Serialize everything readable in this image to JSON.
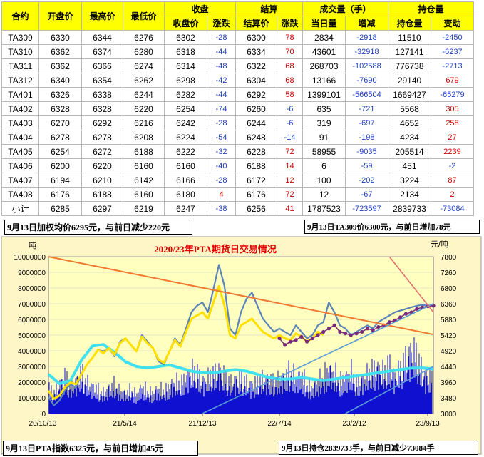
{
  "table": {
    "group_headers": [
      "收盘",
      "结算",
      "成交量（手）",
      "持仓量"
    ],
    "columns": [
      "合约",
      "开盘价",
      "最高价",
      "最低价",
      "收盘价",
      "涨跌",
      "结算价",
      "涨跌",
      "当日量",
      "增减",
      "持仓量",
      "变动"
    ],
    "rows": [
      [
        "TA309",
        "6330",
        "6344",
        "6276",
        "6302",
        "-28",
        "6300",
        "78",
        "2834",
        "-2918",
        "11510",
        "-2450"
      ],
      [
        "TA310",
        "6362",
        "6374",
        "6280",
        "6318",
        "-44",
        "6334",
        "70",
        "43601",
        "-32918",
        "127141",
        "-6237"
      ],
      [
        "TA311",
        "6362",
        "6366",
        "6274",
        "6314",
        "-48",
        "6322",
        "68",
        "268703",
        "-102588",
        "776738",
        "-2713"
      ],
      [
        "TA312",
        "6340",
        "6354",
        "6262",
        "6298",
        "-42",
        "6304",
        "68",
        "13166",
        "-7690",
        "29140",
        "679"
      ],
      [
        "TA401",
        "6326",
        "6338",
        "6244",
        "6282",
        "-44",
        "6292",
        "58",
        "1399101",
        "-566504",
        "1669427",
        "-65279"
      ],
      [
        "TA402",
        "6328",
        "6328",
        "6220",
        "6254",
        "-74",
        "6260",
        "-6",
        "635",
        "-721",
        "5568",
        "305"
      ],
      [
        "TA403",
        "6270",
        "6292",
        "6216",
        "6242",
        "-28",
        "6244",
        "-6",
        "319",
        "-697",
        "4652",
        "258"
      ],
      [
        "TA404",
        "6278",
        "6278",
        "6208",
        "6224",
        "-54",
        "6248",
        "-14",
        "91",
        "-198",
        "4234",
        "27"
      ],
      [
        "TA405",
        "6254",
        "6272",
        "6188",
        "6222",
        "-32",
        "6228",
        "72",
        "58955",
        "-9035",
        "205514",
        "2239"
      ],
      [
        "TA406",
        "6200",
        "6220",
        "6160",
        "6160",
        "-40",
        "6188",
        "14",
        "6",
        "-59",
        "451",
        "-2"
      ],
      [
        "TA407",
        "6194",
        "6210",
        "6142",
        "6166",
        "-28",
        "6172",
        "12",
        "100",
        "-202",
        "3224",
        "87"
      ],
      [
        "TA408",
        "6176",
        "6188",
        "6160",
        "6180",
        "4",
        "6176",
        "72",
        "12",
        "-67",
        "2134",
        "2"
      ],
      [
        "小计",
        "6285",
        "6297",
        "6219",
        "6247",
        "-38",
        "6256",
        "41",
        "1787523",
        "-723597",
        "2839733",
        "-73084"
      ]
    ]
  },
  "notes": {
    "top_left": "9月13日加权均价6295元，与前日减少220元",
    "top_right": "9月13日TA309价6300元，与前日增加78元",
    "bottom_left": "9月13日PTA指数6325元，与前日增加45元",
    "bottom_right": "9月13日持仓2839733手，与前日减少73084手"
  },
  "chart_data": {
    "type": "line",
    "title": "2020/23年PTA期货日交易情况",
    "ylabel_left": "吨",
    "ylabel_right": "元/吨",
    "y_left_ticks": [
      "10000000",
      "9000000",
      "8000000",
      "7000000",
      "6000000",
      "5000000",
      "4000000",
      "3000000",
      "2000000",
      "1000000",
      "0"
    ],
    "y_right_ticks": [
      "7800",
      "7260",
      "6800",
      "6360",
      "5880",
      "5420",
      "4920",
      "4440",
      "3960",
      "3480",
      "3000"
    ],
    "x_ticks": [
      "20/10/13",
      "21/5/14",
      "21/12/13",
      "22/7/14",
      "23/2/12",
      "23/9/13"
    ],
    "y_left_range": [
      0,
      10000000
    ],
    "y_right_range": [
      3000,
      7800
    ],
    "x_range_months": [
      0,
      35
    ],
    "grid": true,
    "colors": {
      "plot_bg": "#ffffc0",
      "frame_bg": "#fff6c8",
      "volume": "#1010d0",
      "open_interest": "#40e0f0",
      "price_steel": "#5b84b8",
      "price_yellow": "#ffe000",
      "price_purple": "#7a2a7a",
      "trend_orange": "#f07830",
      "trend_blue": "#5b9bd5",
      "title": "#e00000"
    },
    "series": [
      {
        "name": "",
        "axis": "right",
        "x": [
          0,
          0.5,
          1,
          1.5,
          2,
          2.5,
          3,
          3.5,
          4,
          4.5,
          5,
          5.5,
          6,
          6.5,
          7,
          7.5,
          8,
          8.5,
          9,
          9.5,
          10,
          10.5,
          11,
          11.5,
          12,
          12.5,
          13,
          13.5,
          14,
          14.5,
          15,
          15.5,
          16,
          16.5,
          17,
          17.5,
          18,
          18.5,
          19,
          19.5,
          20,
          20.5,
          21,
          21.5,
          22,
          22.5,
          23,
          23.5,
          24,
          24.5,
          25,
          25.5,
          26,
          26.5,
          27,
          27.5,
          28,
          28.5,
          29,
          29.5,
          30,
          30.5,
          31,
          31.5,
          32,
          32.5,
          33,
          33.5,
          34,
          34.5,
          35
        ],
        "values": [
          3500,
          3250,
          3400,
          3700,
          3900,
          3800,
          4200,
          4500,
          4700,
          4950,
          4900,
          5000,
          4750,
          5200,
          5300,
          5100,
          4900,
          5400,
          5200,
          5000,
          4600,
          4500,
          4900,
          5300,
          5100,
          5600,
          6100,
          6300,
          6400,
          6100,
          6800,
          7550,
          6900,
          5600,
          5400,
          6100,
          6500,
          6700,
          6300,
          5900,
          5700,
          5500,
          5600,
          5500,
          5400,
          5700,
          5500,
          5300,
          5400,
          5700,
          5800,
          6400,
          6100,
          5700,
          5600,
          5400,
          5500,
          5600,
          5700,
          5600,
          5800,
          5900,
          6000,
          6100,
          6150,
          6200,
          6250,
          6300,
          6325,
          6300,
          6325
        ]
      },
      {
        "name": "",
        "axis": "right",
        "x": [
          0,
          0.5,
          1,
          1.5,
          2,
          2.5,
          3,
          3.5,
          4,
          4.5,
          5,
          5.5,
          6,
          6.5,
          7,
          7.5,
          8,
          8.5,
          9,
          9.5,
          10,
          10.5,
          11,
          11.5,
          12,
          12.5,
          13,
          13.5,
          14,
          14.5,
          15,
          15.5,
          16,
          16.5,
          17,
          17.5,
          18,
          18.5,
          19,
          19.5,
          20,
          20.5,
          21,
          21.5,
          22,
          22.5,
          23,
          23.5,
          24,
          24.5,
          25
        ],
        "values": [
          3700,
          3450,
          3550,
          3800,
          3950,
          3900,
          4200,
          4500,
          4700,
          4950,
          4850,
          5000,
          4800,
          5150,
          5300,
          5100,
          4900,
          5350,
          5150,
          5000,
          4650,
          4550,
          4900,
          5250,
          5050,
          5500,
          5900,
          6000,
          6100,
          5900,
          6400,
          6900,
          6300,
          5400,
          5300,
          5700,
          5800,
          5900,
          5700,
          5500,
          5400,
          5300,
          5400,
          5300,
          5250,
          5450,
          5350,
          5200,
          5300,
          5500,
          5400
        ]
      },
      {
        "name": "",
        "axis": "right",
        "x": [
          21,
          21.5,
          22,
          22.5,
          23,
          23.5,
          24,
          24.5,
          25,
          25.5,
          26,
          26.5,
          27,
          27.5,
          28,
          28.5,
          29,
          29.5,
          30,
          30.5,
          31,
          31.5,
          32,
          32.5,
          33,
          33.5,
          34,
          34.5,
          35
        ],
        "values": [
          5300,
          5100,
          5200,
          5250,
          5350,
          5200,
          5300,
          5400,
          5500,
          5600,
          5700,
          5500,
          5450,
          5400,
          5450,
          5500,
          5600,
          5550,
          5650,
          5700,
          5800,
          5850,
          5950,
          6050,
          6100,
          6200,
          6250,
          6280,
          6300
        ]
      },
      {
        "name": "",
        "axis": "left",
        "x": [
          0,
          1,
          2,
          3,
          4,
          5,
          6,
          7,
          8,
          9,
          10,
          11,
          12,
          13,
          14,
          15,
          16,
          17,
          18,
          19,
          20,
          21,
          22,
          23,
          24,
          25,
          26,
          27,
          28,
          29,
          30,
          31,
          32,
          33,
          34,
          35
        ],
        "values": [
          2500000,
          1900000,
          2100000,
          3400000,
          4300000,
          4400000,
          3900000,
          3300000,
          3000000,
          2900000,
          3000000,
          3100000,
          2900000,
          2700000,
          2600000,
          2600000,
          2700000,
          2800000,
          2700000,
          2500000,
          2300000,
          2200000,
          2200000,
          2300000,
          2200000,
          2100000,
          2200000,
          2300000,
          2400000,
          2500000,
          2600000,
          2700000,
          2800000,
          2900000,
          2900000,
          2840000
        ]
      },
      {
        "name": "",
        "axis": "left",
        "x": [
          0,
          0.5,
          1,
          1.5,
          2,
          2.5,
          3,
          3.5,
          4,
          4.5,
          5,
          5.5,
          6,
          6.5,
          7,
          7.5,
          8,
          8.5,
          9,
          9.5,
          10,
          10.5,
          11,
          11.5,
          12,
          12.5,
          13,
          13.5,
          14,
          14.5,
          15,
          15.5,
          16,
          16.5,
          17,
          17.5,
          18,
          18.5,
          19,
          19.5,
          20,
          20.5,
          21,
          21.5,
          22,
          22.5,
          23,
          23.5,
          24,
          24.5,
          25,
          25.5,
          26,
          26.5,
          27,
          27.5,
          28,
          28.5,
          29,
          29.5,
          30,
          30.5,
          31,
          31.5,
          32,
          32.5,
          33,
          33.5,
          34,
          34.5,
          35
        ],
        "values": [
          1500000,
          1200000,
          1700000,
          2200000,
          1600000,
          1900000,
          2400000,
          1800000,
          1600000,
          1400000,
          1200000,
          1500000,
          1700000,
          1300000,
          1200000,
          1400000,
          1100000,
          1600000,
          1300000,
          1200000,
          1500000,
          1300000,
          1600000,
          1900000,
          1700000,
          2200000,
          2500000,
          2400000,
          1900000,
          2100000,
          2300000,
          2600000,
          2200000,
          1800000,
          2000000,
          2100000,
          1800000,
          1700000,
          1900000,
          2000000,
          2100000,
          1800000,
          2000000,
          2200000,
          2500000,
          2100000,
          2300000,
          1700000,
          1500000,
          1900000,
          2200000,
          2600000,
          2400000,
          1900000,
          2100000,
          2500000,
          1800000,
          2000000,
          2300000,
          2600000,
          2700000,
          2400000,
          2900000,
          2200000,
          2600000,
          3200000,
          3800000,
          3400000,
          2400000,
          2200000,
          2000000
        ]
      }
    ],
    "trendlines": [
      {
        "from": [
          0,
          7800
        ],
        "to": [
          35,
          5420
        ]
      },
      {
        "from": [
          14,
          3000
        ],
        "to": [
          35,
          6360
        ]
      },
      {
        "from": [
          27,
          3000
        ],
        "to": [
          35,
          4440
        ]
      },
      {
        "from": [
          31,
          7800
        ],
        "to": [
          35,
          6100
        ]
      }
    ]
  }
}
